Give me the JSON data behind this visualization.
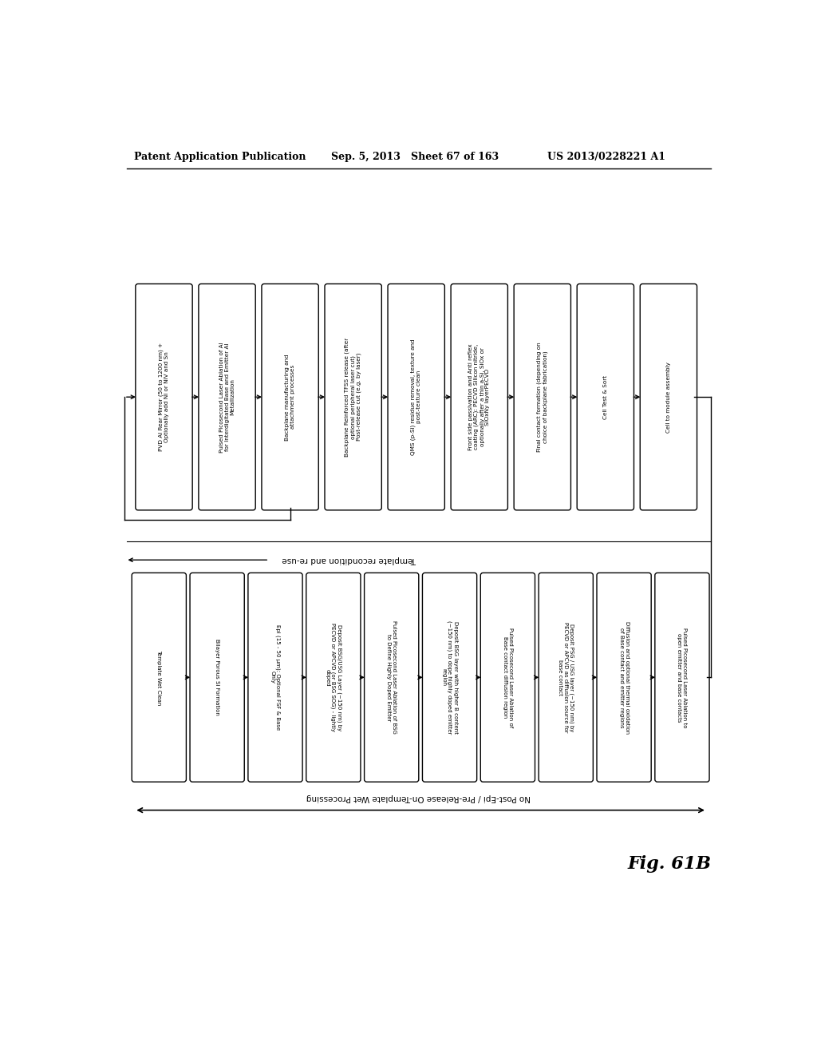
{
  "header_left": "Patent Application Publication",
  "header_mid": "Sep. 5, 2013   Sheet 67 of 163",
  "header_right": "US 2013/0228221 A1",
  "figure_label": "Fig. 61B",
  "top_row_boxes": [
    "PVD Al Rear Mirror (50 to 1200 nm) +\nOptionally add Ni or NiV and Sn",
    "Pulsed Picosecond Laser Ablation of Al\nfor Interdigitated Base and Emitter Al\nMetallization",
    "Backplane manufacturing and\nattachment processes",
    "Backplane Reinforced TFSS release (after\noptional peripheral laser cut)\nPost-release cut (e.g. by laser)",
    "QMS (p-Si) residue removal, texture and\npost-texture clean",
    "Front side passivation and Anti reflex\ncoating (ARC): PECVD Silicon nitride,\noptionally after a thin a-Si, SiOx or\nSiOxNy layerPECVD",
    "Final contact formation (depending on\nchoice of backplane fabrication)",
    "Cell Test & Sort",
    "Cell to module assembly"
  ],
  "bottom_row_boxes": [
    "Template Wet Clean",
    "Bilayer Porous Si Formation",
    "Epi (15 - 50 μm): Optional FSF & Base\nOnly",
    "Deposit BSG/USG Layer (~150 nm) by\nPECVD or APCVD (or BSG SOG) - lightly\ndoped",
    "Pulsed Picosecond Laser Ablation of BSG\nto Define Highly Doped Emitter",
    "Deposit BSG layer with higher B content\n(~150 nm) to dope highly doped emitter\nregion",
    "Pulsed Picosecond Laser Ablation of\nBase contact diffusion region",
    "Deposit PSG / USG layer (~150 nm) by\nPECVD or APCVD as diffusion source for\nbase contact",
    "Diffusion and optional thermal oxidation\nof Base contact and emitter regions",
    "Pulsed Picosecond Laser Ablation to\nopen emitter and base contacts"
  ],
  "template_recondition_label": "Template recondition and re-use",
  "no_post_epi_label": "No Post-Epi / Pre-Release On-Template Wet Processing",
  "bg_color": "#ffffff",
  "box_color": "#ffffff",
  "box_edge_color": "#000000",
  "text_color": "#000000",
  "arrow_color": "#000000"
}
